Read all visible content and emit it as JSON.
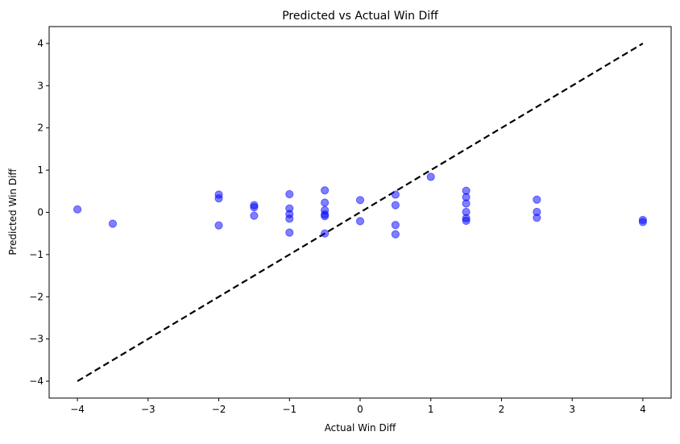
{
  "chart_data": {
    "type": "scatter",
    "title": "Predicted vs Actual Win Diff",
    "xlabel": "Actual Win Diff",
    "ylabel": "Predicted Win Diff",
    "xlim": [
      -4.4,
      4.4
    ],
    "ylim": [
      -4.4,
      4.4
    ],
    "xticks": [
      -4,
      -3,
      -2,
      -1,
      0,
      1,
      2,
      3,
      4
    ],
    "yticks": [
      -4,
      -3,
      -2,
      -1,
      0,
      1,
      2,
      3,
      4
    ],
    "xtick_labels": [
      "−4",
      "−3",
      "−2",
      "−1",
      "0",
      "1",
      "2",
      "3",
      "4"
    ],
    "ytick_labels": [
      "−4",
      "−3",
      "−2",
      "−1",
      "0",
      "1",
      "2",
      "3",
      "4"
    ],
    "grid": false,
    "point_color": "#0000ff",
    "line_color": "#000000",
    "reference_line": {
      "x": [
        -4,
        4
      ],
      "y": [
        -4,
        4
      ],
      "style": "dashed"
    },
    "points": {
      "x": [
        -4,
        -3.5,
        -2,
        -2,
        -2,
        -1.5,
        -1.5,
        -1.5,
        -1,
        -1,
        -1,
        -1,
        -1,
        -0.5,
        -0.5,
        -0.5,
        -0.5,
        -0.5,
        -0.5,
        0,
        0,
        0.5,
        0.5,
        0.5,
        0.5,
        1,
        1.5,
        1.5,
        1.5,
        1.5,
        1.5,
        1.5,
        2.5,
        2.5,
        2.5,
        4,
        4
      ],
      "y": [
        0.07,
        -0.27,
        0.42,
        0.33,
        -0.31,
        0.17,
        0.12,
        -0.08,
        0.43,
        0.09,
        -0.04,
        -0.15,
        -0.48,
        0.52,
        0.23,
        0.05,
        -0.05,
        -0.09,
        -0.5,
        0.29,
        -0.21,
        0.42,
        0.17,
        -0.3,
        -0.52,
        0.84,
        0.51,
        0.36,
        0.21,
        0.01,
        -0.14,
        -0.2,
        0.3,
        0.01,
        -0.13,
        -0.18,
        -0.23
      ]
    }
  }
}
